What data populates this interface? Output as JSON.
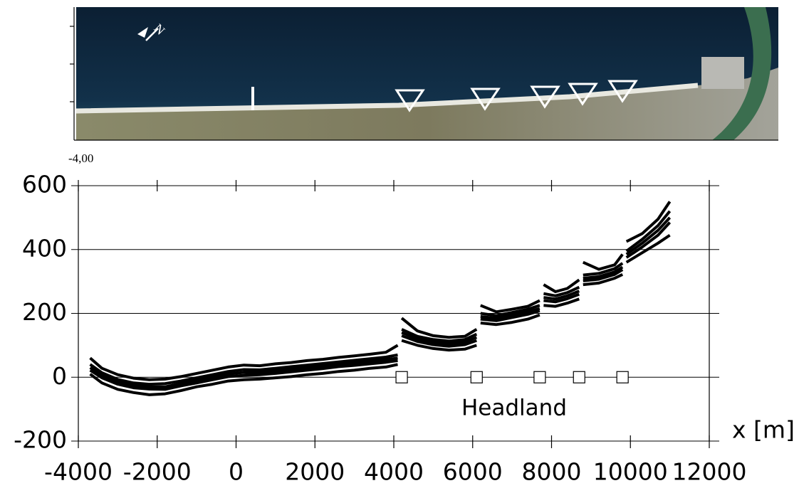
{
  "chart_data": {
    "type": "line",
    "image_axis_label": "-4,00",
    "annotation": "Headland",
    "x_label": "x [m]",
    "x": [
      -3700,
      -3400,
      -3000,
      -2600,
      -2200,
      -1800,
      -1400,
      -1000,
      -600,
      -200,
      200,
      600,
      1000,
      1400,
      1800,
      2200,
      2600,
      3000,
      3400,
      3800,
      4100,
      null,
      4200,
      4600,
      5000,
      5400,
      5800,
      6100,
      null,
      6200,
      6600,
      7000,
      7400,
      7700,
      null,
      7800,
      8100,
      8400,
      8700,
      null,
      8800,
      9200,
      9600,
      9800,
      null,
      9900,
      10300,
      10700,
      11000
    ],
    "series": [
      {
        "color": "#000000",
        "values": [
          10,
          -18,
          -38,
          -48,
          -55,
          -52,
          -42,
          -30,
          -22,
          -12,
          -8,
          -6,
          -2,
          2,
          8,
          12,
          18,
          22,
          28,
          32,
          40,
          null,
          115,
          100,
          90,
          85,
          88,
          100,
          null,
          170,
          165,
          172,
          182,
          195,
          null,
          225,
          222,
          232,
          245,
          null,
          290,
          295,
          310,
          322,
          null,
          360,
          390,
          420,
          445
        ]
      },
      {
        "color": "#000000",
        "values": [
          22,
          -2,
          -22,
          -33,
          -37,
          -38,
          -27,
          -18,
          -8,
          2,
          6,
          8,
          12,
          17,
          22,
          27,
          33,
          37,
          42,
          47,
          52,
          null,
          130,
          112,
          102,
          97,
          102,
          115,
          null,
          182,
          177,
          187,
          197,
          208,
          null,
          240,
          236,
          246,
          260,
          null,
          302,
          307,
          322,
          337,
          null,
          375,
          408,
          445,
          485
        ]
      },
      {
        "color": "#000000",
        "values": [
          30,
          5,
          -15,
          -25,
          -30,
          -30,
          -20,
          -10,
          0,
          10,
          15,
          15,
          20,
          25,
          30,
          35,
          40,
          45,
          50,
          55,
          60,
          null,
          140,
          120,
          110,
          105,
          110,
          125,
          null,
          190,
          185,
          195,
          205,
          215,
          null,
          250,
          245,
          255,
          270,
          null,
          310,
          315,
          330,
          345,
          null,
          385,
          420,
          460,
          500
        ]
      },
      {
        "color": "#000000",
        "values": [
          40,
          14,
          -7,
          -18,
          -22,
          -20,
          -12,
          -2,
          8,
          18,
          24,
          23,
          28,
          33,
          38,
          43,
          48,
          53,
          58,
          63,
          70,
          null,
          150,
          128,
          118,
          113,
          118,
          135,
          null,
          200,
          193,
          203,
          213,
          225,
          null,
          262,
          255,
          265,
          282,
          null,
          320,
          325,
          340,
          357,
          null,
          395,
          432,
          475,
          520
        ]
      },
      {
        "color": "#000000",
        "values": [
          60,
          28,
          8,
          -3,
          -8,
          -6,
          2,
          12,
          22,
          32,
          38,
          36,
          42,
          46,
          52,
          56,
          62,
          67,
          72,
          78,
          100,
          null,
          185,
          145,
          130,
          125,
          128,
          150,
          null,
          225,
          205,
          213,
          222,
          240,
          null,
          290,
          268,
          278,
          305,
          null,
          360,
          338,
          352,
          385,
          null,
          425,
          450,
          495,
          550
        ]
      }
    ],
    "headlands": {
      "x": [
        4200,
        6100,
        7700,
        8700,
        9800
      ],
      "y": [
        0,
        0,
        0,
        0,
        0
      ]
    },
    "xlim": [
      -4000,
      12000
    ],
    "ylim": [
      -200,
      600
    ],
    "xticks": [
      -4000,
      -2000,
      0,
      2000,
      4000,
      6000,
      8000,
      10000,
      12000
    ],
    "yticks": [
      -200,
      0,
      200,
      400,
      600
    ],
    "grid": true
  }
}
